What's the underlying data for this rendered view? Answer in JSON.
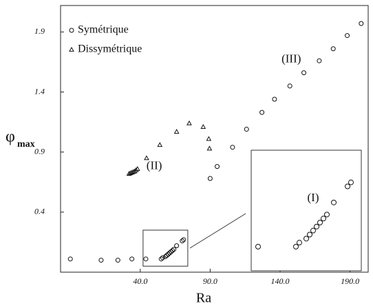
{
  "chart_data": {
    "type": "scatter",
    "x_label": "Ra",
    "y_label": "φ",
    "y_label_sub": "max",
    "xlim": [
      -17,
      203
    ],
    "ylim": [
      -0.1,
      2.12
    ],
    "xticks": [
      {
        "value": 40,
        "label": "40.0"
      },
      {
        "value": 90,
        "label": "90.0"
      },
      {
        "value": 140,
        "label": "140.0"
      },
      {
        "value": 190,
        "label": "190.0"
      }
    ],
    "yticks": [
      0.4,
      0.9,
      1.4,
      1.9
    ],
    "legend": "upper left",
    "series": [
      {
        "name": "Symétrique",
        "marker": "circle",
        "color": "#111111",
        "x": [
          -10,
          12,
          24,
          34,
          44,
          55,
          56,
          58,
          59,
          60,
          61,
          62,
          63,
          64,
          66,
          70,
          71,
          90,
          95,
          106,
          116,
          127,
          136,
          147,
          157,
          168,
          178,
          188,
          198
        ],
        "values": [
          0.01,
          0.0,
          0.0,
          0.01,
          0.01,
          0.01,
          0.02,
          0.03,
          0.04,
          0.05,
          0.06,
          0.07,
          0.08,
          0.09,
          0.12,
          0.16,
          0.17,
          0.68,
          0.78,
          0.94,
          1.09,
          1.23,
          1.34,
          1.45,
          1.56,
          1.66,
          1.76,
          1.87,
          1.97
        ]
      },
      {
        "name": "Dissymétrique",
        "marker": "triangle",
        "color": "#111111",
        "x": [
          32,
          33,
          34,
          35,
          36,
          37,
          38,
          44.5,
          54,
          66,
          75,
          85,
          89,
          89.5
        ],
        "values": [
          0.72,
          0.725,
          0.73,
          0.735,
          0.74,
          0.75,
          0.76,
          0.85,
          0.96,
          1.07,
          1.14,
          1.11,
          1.01,
          0.93
        ]
      }
    ],
    "annotations": [
      {
        "text": "(II)",
        "x": 50,
        "y": 0.78
      },
      {
        "text": "(III)",
        "x": 148,
        "y": 1.67
      },
      {
        "text": "(I)",
        "inset": true,
        "x": 60,
        "y": 0.13
      }
    ],
    "zoom": {
      "xlim": [
        42,
        74
      ],
      "ylim": [
        -0.05,
        0.25
      ]
    }
  }
}
